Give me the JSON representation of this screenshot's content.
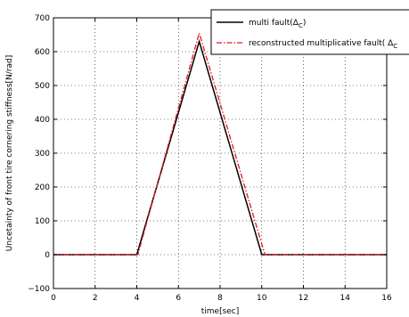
{
  "chart_data": {
    "type": "line",
    "xlabel": "time[sec]",
    "ylabel": "Uncetainty of front tire cornering stiffness[N/rad]",
    "xlim": [
      0,
      16
    ],
    "ylim": [
      -100,
      700
    ],
    "xticks": [
      0,
      2,
      4,
      6,
      8,
      10,
      12,
      14,
      16
    ],
    "yticks": [
      -100,
      0,
      100,
      200,
      300,
      400,
      500,
      600,
      700
    ],
    "grid": true,
    "legend_position": "top-right",
    "series": [
      {
        "name": "multi fault(Δ",
        "name_subscript": "C",
        "name_suffix": ")",
        "color": "#000000",
        "style": "solid",
        "x": [
          0,
          4,
          7,
          10,
          16
        ],
        "y": [
          0,
          0,
          630,
          0,
          0
        ]
      },
      {
        "name": "reconstructed multiplicative fault( Δ",
        "name_subscript": "C",
        "name_suffix": "",
        "color": "#e8161c",
        "style": "dashdot",
        "x": [
          0,
          4.05,
          7,
          10.15,
          16
        ],
        "y": [
          0,
          0,
          655,
          0,
          0
        ]
      }
    ]
  }
}
